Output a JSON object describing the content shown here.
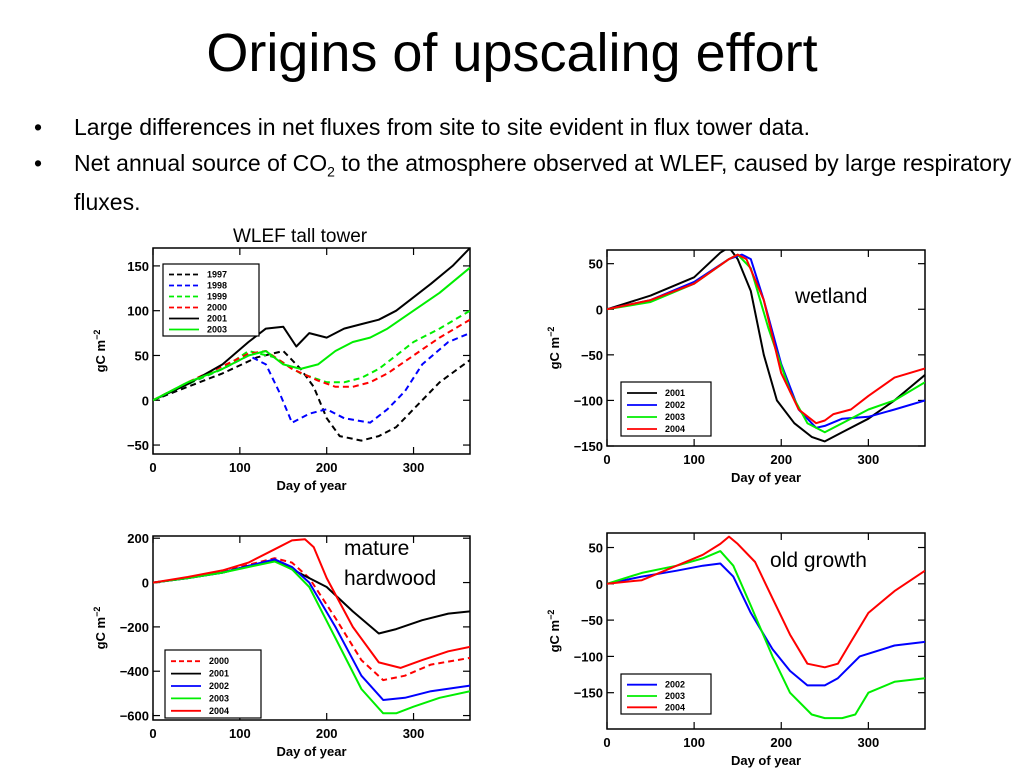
{
  "slide": {
    "title": "Origins of upscaling effort",
    "bullets": [
      {
        "text": "Large differences in net fluxes from site to site evident in flux tower data."
      },
      {
        "text_before": "Net annual source of CO",
        "subscript": "2",
        "text_after": " to the atmosphere observed at WLEF, caused by large respiratory fluxes."
      }
    ],
    "bullet_symbol": "•"
  },
  "charts_caption": "WLEF tall tower",
  "axis_text": {
    "xlabel": "Day of year",
    "ylabel_main": "gC m",
    "ylabel_sup": "−2"
  },
  "chart_data": [
    {
      "id": "wlef",
      "type": "line",
      "panel_label": "",
      "xlim": [
        0,
        365
      ],
      "ylim": [
        -60,
        170
      ],
      "xticks": [
        0,
        100,
        200,
        300
      ],
      "yticks": [
        -50,
        0,
        50,
        100,
        150
      ],
      "ytick_labels": [
        "−50",
        "0",
        "50",
        "100",
        "150"
      ],
      "series": [
        {
          "name": "1997",
          "color": "#000000",
          "dash": true,
          "x": [
            0,
            40,
            80,
            120,
            150,
            170,
            185,
            200,
            215,
            240,
            260,
            280,
            300,
            330,
            365
          ],
          "y": [
            0,
            15,
            30,
            48,
            55,
            35,
            15,
            -20,
            -40,
            -45,
            -40,
            -30,
            -10,
            20,
            45
          ]
        },
        {
          "name": "1998",
          "color": "#0000ff",
          "dash": true,
          "x": [
            0,
            40,
            80,
            110,
            130,
            145,
            160,
            180,
            200,
            220,
            250,
            270,
            290,
            310,
            340,
            365
          ],
          "y": [
            0,
            18,
            35,
            50,
            40,
            10,
            -25,
            -15,
            -10,
            -20,
            -25,
            -10,
            10,
            40,
            65,
            75
          ]
        },
        {
          "name": "1999",
          "color": "#00ee00",
          "dash": true,
          "x": [
            0,
            40,
            80,
            110,
            140,
            170,
            200,
            220,
            240,
            260,
            280,
            300,
            330,
            365
          ],
          "y": [
            0,
            18,
            35,
            55,
            48,
            30,
            20,
            20,
            25,
            35,
            50,
            65,
            80,
            100
          ]
        },
        {
          "name": "2000",
          "color": "#ff0000",
          "dash": true,
          "x": [
            0,
            40,
            80,
            110,
            130,
            160,
            190,
            210,
            230,
            250,
            270,
            300,
            330,
            365
          ],
          "y": [
            0,
            20,
            38,
            52,
            55,
            35,
            22,
            15,
            15,
            20,
            30,
            50,
            70,
            90
          ]
        },
        {
          "name": "2001",
          "color": "#000000",
          "dash": false,
          "x": [
            0,
            40,
            80,
            110,
            130,
            150,
            165,
            180,
            200,
            220,
            240,
            260,
            280,
            300,
            320,
            345,
            365
          ],
          "y": [
            0,
            18,
            40,
            65,
            80,
            82,
            60,
            75,
            70,
            80,
            85,
            90,
            100,
            115,
            130,
            150,
            170
          ]
        },
        {
          "name": "2003",
          "color": "#00ee00",
          "dash": false,
          "x": [
            0,
            40,
            80,
            110,
            130,
            150,
            170,
            190,
            210,
            230,
            250,
            270,
            300,
            330,
            365
          ],
          "y": [
            0,
            20,
            35,
            50,
            55,
            40,
            35,
            40,
            55,
            65,
            70,
            80,
            100,
            120,
            148
          ]
        }
      ]
    },
    {
      "id": "wetland",
      "type": "line",
      "panel_label": "wetland",
      "xlim": [
        0,
        365
      ],
      "ylim": [
        -150,
        65
      ],
      "xticks": [
        0,
        100,
        200,
        300
      ],
      "yticks": [
        -150,
        -100,
        -50,
        0,
        50
      ],
      "ytick_labels": [
        "−150",
        "−100",
        "−50",
        "0",
        "50"
      ],
      "series": [
        {
          "name": "2001",
          "color": "#000000",
          "dash": false,
          "x": [
            0,
            50,
            100,
            130,
            140,
            150,
            165,
            180,
            195,
            215,
            235,
            250,
            270,
            300,
            330,
            365
          ],
          "y": [
            0,
            15,
            35,
            62,
            68,
            55,
            20,
            -50,
            -100,
            -125,
            -140,
            -145,
            -135,
            -120,
            -100,
            -72
          ]
        },
        {
          "name": "2002",
          "color": "#0000ff",
          "dash": false,
          "x": [
            0,
            50,
            100,
            140,
            155,
            165,
            180,
            200,
            220,
            240,
            250,
            270,
            300,
            330,
            365
          ],
          "y": [
            0,
            10,
            30,
            55,
            60,
            55,
            10,
            -60,
            -110,
            -130,
            -128,
            -120,
            -118,
            -110,
            -100
          ]
        },
        {
          "name": "2003",
          "color": "#00ee00",
          "dash": false,
          "x": [
            0,
            50,
            100,
            140,
            150,
            165,
            185,
            210,
            230,
            250,
            270,
            300,
            330,
            365
          ],
          "y": [
            0,
            8,
            28,
            55,
            60,
            45,
            -20,
            -90,
            -125,
            -135,
            -125,
            -110,
            -100,
            -80
          ]
        },
        {
          "name": "2004",
          "color": "#ff0000",
          "dash": false,
          "x": [
            0,
            50,
            100,
            140,
            150,
            160,
            180,
            200,
            220,
            240,
            250,
            260,
            280,
            300,
            330,
            365
          ],
          "y": [
            0,
            10,
            28,
            55,
            60,
            55,
            10,
            -70,
            -110,
            -125,
            -122,
            -115,
            -110,
            -95,
            -75,
            -65
          ]
        }
      ]
    },
    {
      "id": "hardwood",
      "type": "line",
      "panel_label": "mature hardwood",
      "xlim": [
        0,
        365
      ],
      "ylim": [
        -620,
        210
      ],
      "xticks": [
        0,
        100,
        200,
        300
      ],
      "yticks": [
        -600,
        -400,
        -200,
        0,
        200
      ],
      "ytick_labels": [
        "−600",
        "−400",
        "−200",
        "0",
        "200"
      ],
      "series": [
        {
          "name": "2000",
          "color": "#ff0000",
          "dash": true,
          "x": [
            0,
            40,
            80,
            110,
            140,
            160,
            180,
            210,
            240,
            265,
            290,
            320,
            365
          ],
          "y": [
            0,
            20,
            50,
            80,
            110,
            90,
            20,
            -160,
            -350,
            -440,
            -420,
            -370,
            -340
          ]
        },
        {
          "name": "2001",
          "color": "#000000",
          "dash": false,
          "x": [
            0,
            40,
            80,
            110,
            140,
            160,
            180,
            200,
            230,
            260,
            280,
            310,
            340,
            365
          ],
          "y": [
            0,
            20,
            45,
            75,
            100,
            60,
            20,
            -20,
            -130,
            -230,
            -210,
            -170,
            -140,
            -130
          ]
        },
        {
          "name": "2002",
          "color": "#0000ff",
          "dash": false,
          "x": [
            0,
            40,
            80,
            110,
            140,
            160,
            180,
            210,
            240,
            265,
            290,
            320,
            365
          ],
          "y": [
            0,
            20,
            45,
            75,
            105,
            70,
            0,
            -200,
            -420,
            -530,
            -520,
            -490,
            -465
          ]
        },
        {
          "name": "2003",
          "color": "#00ee00",
          "dash": false,
          "x": [
            0,
            40,
            80,
            110,
            140,
            160,
            180,
            210,
            240,
            265,
            280,
            300,
            330,
            365
          ],
          "y": [
            0,
            20,
            45,
            70,
            95,
            60,
            -20,
            -250,
            -480,
            -590,
            -590,
            -560,
            -520,
            -490
          ]
        },
        {
          "name": "2004",
          "color": "#ff0000",
          "dash": false,
          "x": [
            0,
            40,
            80,
            110,
            140,
            160,
            175,
            185,
            200,
            230,
            260,
            285,
            310,
            340,
            365
          ],
          "y": [
            0,
            25,
            55,
            90,
            150,
            190,
            195,
            160,
            20,
            -200,
            -360,
            -385,
            -350,
            -310,
            -290
          ]
        }
      ]
    },
    {
      "id": "old-growth",
      "type": "line",
      "panel_label": "old growth",
      "xlim": [
        0,
        365
      ],
      "ylim": [
        -200,
        70
      ],
      "xticks": [
        0,
        100,
        200,
        300
      ],
      "yticks": [
        -150,
        -100,
        -50,
        0,
        50
      ],
      "ytick_labels": [
        "−150",
        "−100",
        "−50",
        "0",
        "50"
      ],
      "series": [
        {
          "name": "2002",
          "color": "#0000ff",
          "dash": false,
          "x": [
            0,
            40,
            80,
            110,
            130,
            145,
            165,
            190,
            210,
            230,
            250,
            265,
            290,
            330,
            365
          ],
          "y": [
            0,
            10,
            18,
            25,
            28,
            10,
            -40,
            -90,
            -120,
            -140,
            -140,
            -130,
            -100,
            -85,
            -80
          ]
        },
        {
          "name": "2003",
          "color": "#00ee00",
          "dash": false,
          "x": [
            0,
            40,
            80,
            110,
            130,
            145,
            165,
            190,
            210,
            235,
            250,
            270,
            285,
            300,
            330,
            365
          ],
          "y": [
            0,
            15,
            25,
            35,
            45,
            25,
            -30,
            -100,
            -150,
            -180,
            -185,
            -185,
            -180,
            -150,
            -135,
            -130
          ]
        },
        {
          "name": "2004",
          "color": "#ff0000",
          "dash": false,
          "x": [
            0,
            40,
            80,
            110,
            130,
            140,
            150,
            170,
            190,
            210,
            230,
            250,
            265,
            280,
            300,
            330,
            365
          ],
          "y": [
            0,
            5,
            25,
            40,
            55,
            65,
            55,
            30,
            -20,
            -70,
            -110,
            -115,
            -110,
            -80,
            -40,
            -10,
            18
          ]
        }
      ]
    }
  ]
}
